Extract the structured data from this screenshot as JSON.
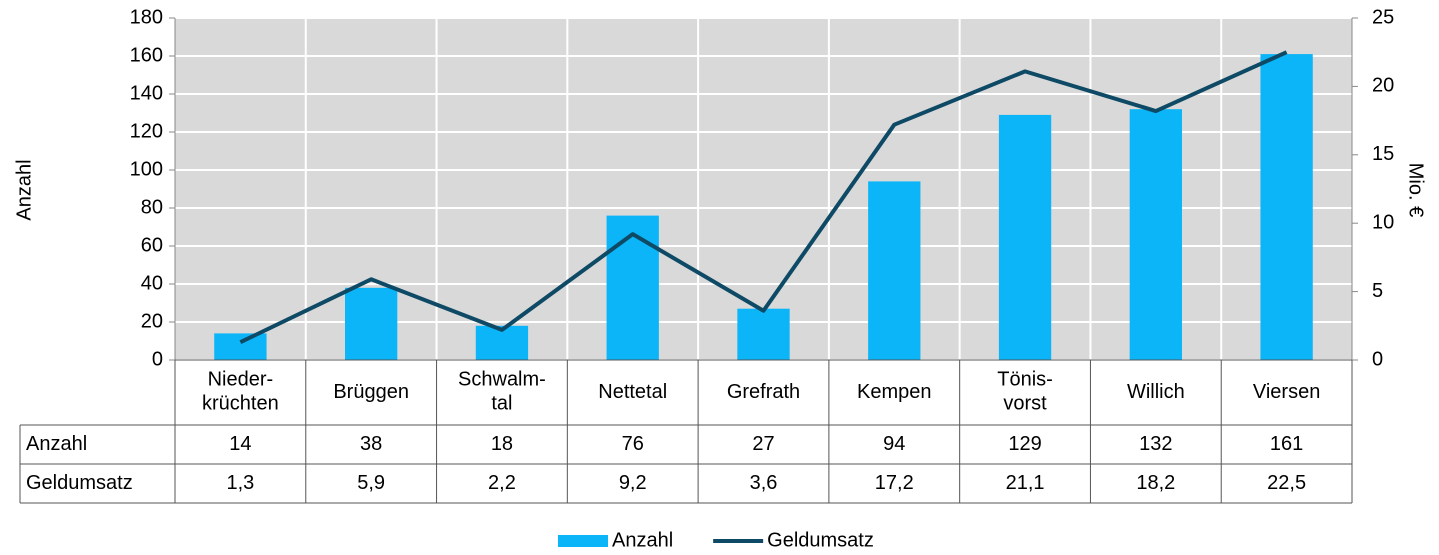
{
  "chart_data": {
    "type": "bar_line",
    "categories": [
      "Nieder-\nkrüchten",
      "Brüggen",
      "Schwalm-\ntal",
      "Nettetal",
      "Grefrath",
      "Kempen",
      "Tönis-\nvorst",
      "Willich",
      "Viersen"
    ],
    "series": [
      {
        "name": "Anzahl",
        "type": "bar",
        "color": "#0bb5f7",
        "values": [
          14,
          38,
          18,
          76,
          27,
          94,
          129,
          132,
          161
        ]
      },
      {
        "name": "Geldumsatz",
        "type": "line",
        "axis": "y2",
        "color": "#0e4a65",
        "values": [
          1.3,
          5.9,
          2.2,
          9.2,
          3.6,
          17.2,
          21.1,
          18.2,
          22.5
        ],
        "value_labels": [
          "1,3",
          "5,9",
          "2,2",
          "9,2",
          "3,6",
          "17,2",
          "21,1",
          "18,2",
          "22,5"
        ]
      }
    ],
    "ylabel": "Anzahl",
    "y2label": "Mio. €",
    "ylim": [
      0,
      180
    ],
    "yticks": [
      0,
      20,
      40,
      60,
      80,
      100,
      120,
      140,
      160,
      180
    ],
    "y2lim": [
      0,
      25
    ],
    "y2ticks": [
      0,
      5,
      10,
      15,
      20,
      25
    ],
    "grid": true,
    "legend": "bottom"
  }
}
